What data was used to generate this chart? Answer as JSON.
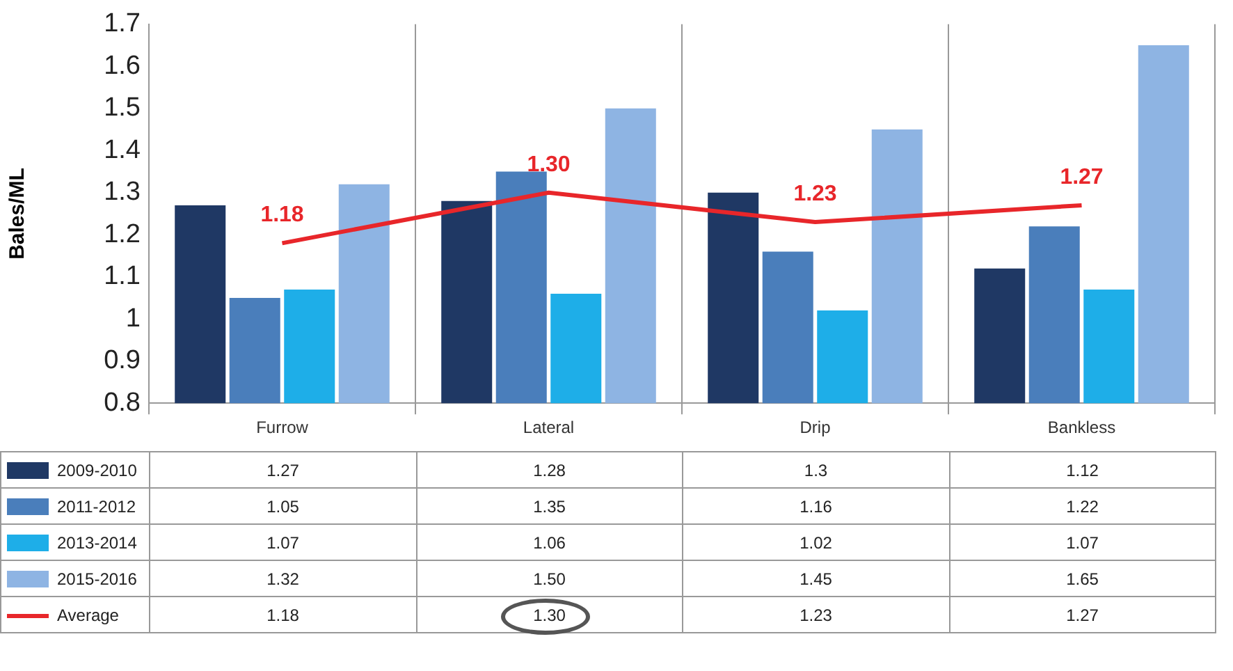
{
  "chart_data": {
    "type": "bar",
    "ylabel": "Bales/ML",
    "categories": [
      "Furrow",
      "Lateral",
      "Drip",
      "Bankless"
    ],
    "ylim": [
      0.8,
      1.7
    ],
    "yticks": [
      0.8,
      0.9,
      1,
      1.1,
      1.2,
      1.3,
      1.4,
      1.5,
      1.6,
      1.7
    ],
    "grid": "x",
    "legend": "bottom",
    "data_labels": true,
    "series": [
      {
        "name": "2009-2010",
        "color": "#1f3864",
        "values": [
          1.27,
          1.28,
          1.3,
          1.12
        ],
        "value_labels": [
          "1.27",
          "1.28",
          "1.3",
          "1.12"
        ]
      },
      {
        "name": "2011-2012",
        "color": "#4a7ebb",
        "values": [
          1.05,
          1.35,
          1.16,
          1.22
        ],
        "value_labels": [
          "1.05",
          "1.35",
          "1.16",
          "1.22"
        ]
      },
      {
        "name": "2013-2014",
        "color": "#1eaee8",
        "values": [
          1.07,
          1.06,
          1.02,
          1.07
        ],
        "value_labels": [
          "1.07",
          "1.06",
          "1.02",
          "1.07"
        ]
      },
      {
        "name": "2015-2016",
        "color": "#8eb4e3",
        "values": [
          1.32,
          1.5,
          1.45,
          1.65
        ],
        "value_labels": [
          "1.32",
          "1.50",
          "1.45",
          "1.65"
        ]
      },
      {
        "name": "Average",
        "type": "line",
        "color": "#e8262a",
        "marker": "none",
        "values": [
          1.18,
          1.3,
          1.23,
          1.27
        ],
        "value_labels": [
          "1.18",
          "1.30",
          "1.23",
          "1.27"
        ]
      }
    ]
  }
}
